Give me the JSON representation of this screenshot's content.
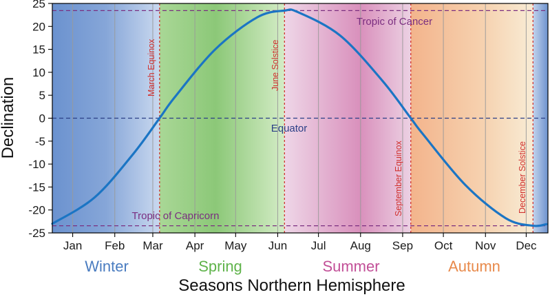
{
  "chart_data": {
    "type": "line",
    "title": "",
    "ylabel": "Declination",
    "xlabel": "Seasons Northern Hemisphere",
    "ylim": [
      -25,
      25
    ],
    "yticks": [
      25,
      20,
      15,
      10,
      5,
      0,
      -5,
      -10,
      -15,
      -20,
      -25
    ],
    "months": [
      "Jan",
      "Feb",
      "Mar",
      "Apr",
      "May",
      "Jun",
      "Jul",
      "Aug",
      "Sep",
      "Oct",
      "Nov",
      "Dec"
    ],
    "seasons": [
      {
        "name": "Winter",
        "color": "#4a7cc0"
      },
      {
        "name": "Spring",
        "color": "#5fb34a"
      },
      {
        "name": "Summer",
        "color": "#c24f97"
      },
      {
        "name": "Autumn",
        "color": "#e8894a"
      }
    ],
    "series": [
      {
        "color": "#1b75c4",
        "x": [
          "Jan 1",
          "Feb 1",
          "Mar 1",
          "Mar 21",
          "Apr 1",
          "May 1",
          "Jun 1",
          "Jun 21",
          "Jul 1",
          "Aug 1",
          "Sep 1",
          "Sep 22",
          "Oct 1",
          "Nov 1",
          "Dec 1",
          "Dec 21",
          "Dec 31"
        ],
        "values": [
          -23.0,
          -17.3,
          -8.0,
          0,
          4.5,
          15.0,
          22.0,
          23.44,
          23.1,
          18.0,
          8.2,
          0,
          -3.5,
          -14.5,
          -21.8,
          -23.44,
          -23.1
        ]
      }
    ],
    "reference_lines": [
      {
        "label": "Tropic of Cancer",
        "value": 23.44,
        "color": "#7a2e80"
      },
      {
        "label": "Equator",
        "value": 0,
        "color": "#2b3f86"
      },
      {
        "label": "Tropic of Capricorn",
        "value": -23.44,
        "color": "#7a2e80"
      }
    ],
    "events": [
      {
        "label": "March Equinox",
        "date": "Mar 21"
      },
      {
        "label": "June Solstice",
        "date": "Jun 21"
      },
      {
        "label": "September Equinox",
        "date": "Sep 22"
      },
      {
        "label": "December Solstice",
        "date": "Dec 21"
      }
    ],
    "event_color": "#d0302e"
  }
}
